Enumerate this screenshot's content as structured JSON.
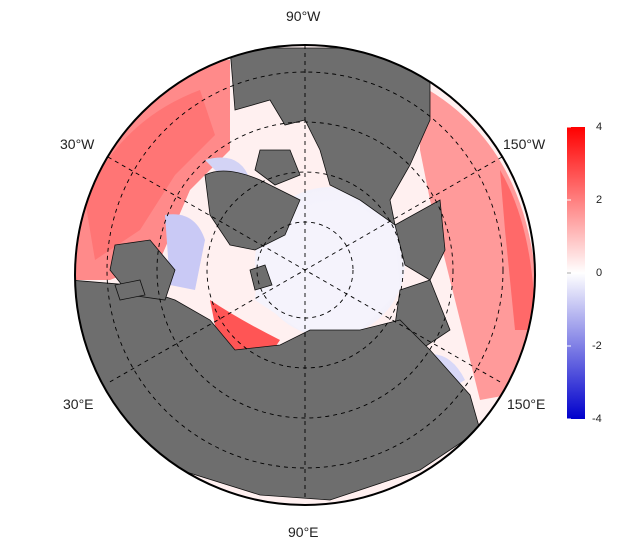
{
  "map": {
    "projection": "north-polar-stereographic",
    "land_color": "#6e6e6e",
    "coast_color": "#111111",
    "ocean_neutral": "#f7f5fb",
    "lon_labels": [
      "90°W",
      "30°W",
      "150°W",
      "30°E",
      "150°E",
      "90°E"
    ]
  },
  "colorbar": {
    "ticks": [
      "4",
      "2",
      "0",
      "-2",
      "-4"
    ],
    "max": 4,
    "min": -4,
    "colors": {
      "high": "#ff0000",
      "mid": "#ffffff",
      "low": "#0000cc"
    }
  }
}
